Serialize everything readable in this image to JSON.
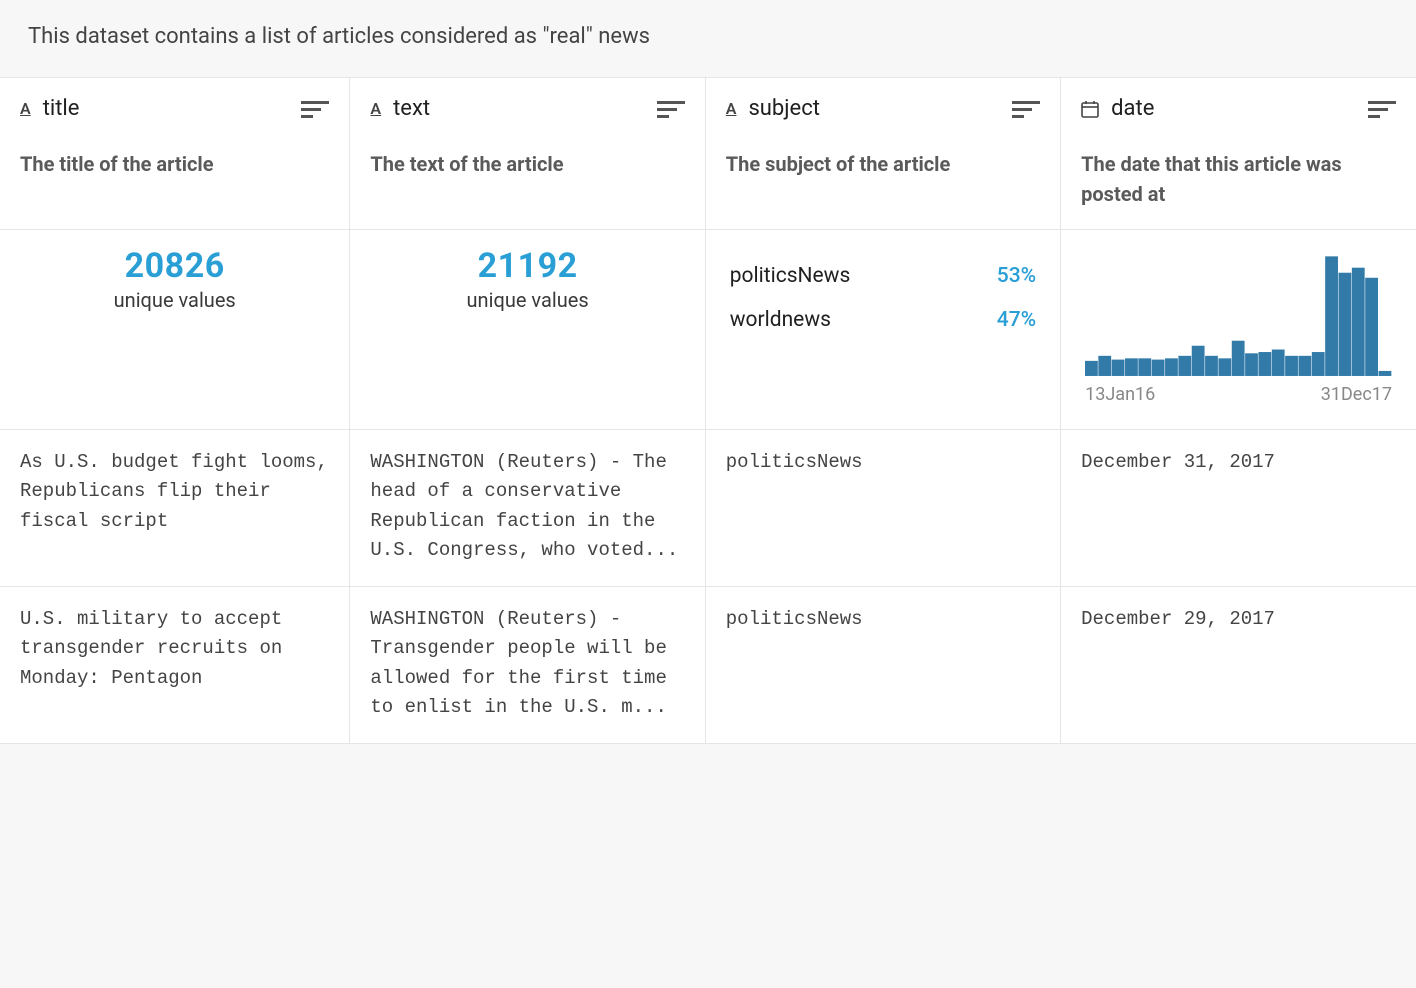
{
  "description": "This dataset contains a list of articles considered as \"real\" news",
  "colors": {
    "accent": "#2a9fd6",
    "bar_fill": "#327ba8",
    "border": "#e5e5e5",
    "text_muted": "#5a5a5a",
    "text_dim": "#888",
    "background_page": "#f7f7f7",
    "background_table": "#ffffff"
  },
  "columns": [
    {
      "key": "title",
      "type": "string",
      "name": "title",
      "description": "The title of the article"
    },
    {
      "key": "text",
      "type": "string",
      "name": "text",
      "description": "The text of the article"
    },
    {
      "key": "subject",
      "type": "string",
      "name": "subject",
      "description": "The subject of the article"
    },
    {
      "key": "date",
      "type": "date",
      "name": "date",
      "description": "The date that this article was posted at"
    }
  ],
  "stats": {
    "title": {
      "kind": "unique",
      "count": "20826",
      "label": "unique values"
    },
    "text": {
      "kind": "unique",
      "count": "21192",
      "label": "unique values"
    },
    "subject": {
      "kind": "categorical",
      "items": [
        {
          "label": "politicsNews",
          "pct": "53%"
        },
        {
          "label": "worldnews",
          "pct": "47%"
        }
      ]
    },
    "date": {
      "kind": "histogram",
      "axis_min": "13Jan16",
      "axis_max": "31Dec17",
      "chart": {
        "type": "histogram",
        "bar_fill": "#327ba8",
        "background": "#ffffff",
        "ylim": [
          0,
          1.0
        ],
        "bins": [
          0.12,
          0.16,
          0.13,
          0.14,
          0.14,
          0.13,
          0.14,
          0.16,
          0.24,
          0.16,
          0.14,
          0.28,
          0.18,
          0.19,
          0.21,
          0.16,
          0.16,
          0.19,
          0.95,
          0.82,
          0.86,
          0.78,
          0.04
        ]
      }
    }
  },
  "rows": [
    {
      "title": "As U.S. budget fight looms, Republicans flip their fiscal script",
      "text": "WASHINGTON (Reuters) - The head of a conservative Republican faction in the U.S. Congress, who voted...",
      "subject": "politicsNews",
      "date": "December 31, 2017"
    },
    {
      "title": "U.S. military to accept transgender recruits on Monday: Pentagon",
      "text": "WASHINGTON (Reuters) - Transgender people will be allowed for the first time to enlist in the U.S. m...",
      "subject": "politicsNews",
      "date": "December 29, 2017"
    }
  ]
}
